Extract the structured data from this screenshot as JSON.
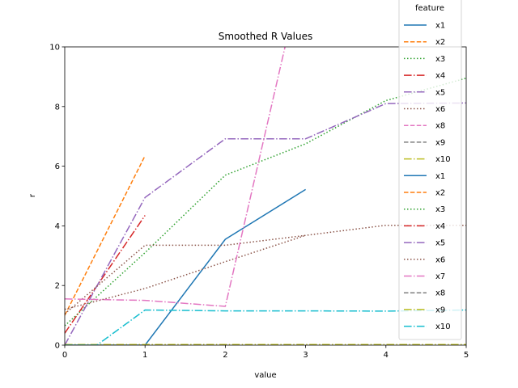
{
  "chart_data": {
    "type": "line",
    "title": "Smoothed R Values",
    "xlabel": "value",
    "ylabel": "r",
    "xlim": [
      0,
      5
    ],
    "ylim": [
      0,
      10
    ],
    "xticks": [
      "0",
      "1",
      "2",
      "3",
      "4",
      "5"
    ],
    "yticks": [
      "0",
      "2",
      "4",
      "6",
      "8",
      "10"
    ],
    "grid": false,
    "legend": {
      "title": "feature",
      "placement": "top-right, extending above the plot"
    },
    "series": [
      {
        "name": "x1",
        "color": "#1f77b4",
        "dash": "solid",
        "x": [
          0,
          1,
          2,
          3
        ],
        "y": [
          0.0,
          0.0,
          3.55,
          5.22
        ]
      },
      {
        "name": "x2",
        "color": "#ff7f0e",
        "dash": "dashed",
        "x": [
          0,
          1
        ],
        "y": [
          1.0,
          6.35
        ]
      },
      {
        "name": "x3",
        "color": "#2ca02c",
        "dash": "dotted",
        "x": [
          0,
          1,
          2,
          3,
          4,
          5
        ],
        "y": [
          0.65,
          3.1,
          5.7,
          6.75,
          8.2,
          8.95
        ]
      },
      {
        "name": "x4",
        "color": "#d62728",
        "dash": "dashdot",
        "x": [
          0,
          1
        ],
        "y": [
          0.4,
          4.35
        ]
      },
      {
        "name": "x5",
        "color": "#9467bd",
        "dash": "dashdot",
        "x": [
          0,
          1,
          2,
          3,
          4,
          5
        ],
        "y": [
          0.0,
          4.95,
          6.92,
          6.92,
          8.1,
          8.12
        ]
      },
      {
        "name": "x6",
        "color": "#8c564b",
        "dash": "densedot",
        "x": [
          0,
          1,
          2,
          3,
          4,
          5
        ],
        "y": [
          1.05,
          3.35,
          3.35,
          3.68,
          4.02,
          4.02
        ]
      },
      {
        "name": "x8",
        "color": "#e377c2",
        "dash": "dashed",
        "x": [],
        "y": []
      },
      {
        "name": "x9",
        "color": "#7f7f7f",
        "dash": "dashed",
        "x": [],
        "y": []
      },
      {
        "name": "x10",
        "color": "#bcbd22",
        "dash": "dashdot",
        "x": [],
        "y": []
      },
      {
        "name": "x1",
        "color": "#1f77b4",
        "dash": "solid",
        "x": [],
        "y": []
      },
      {
        "name": "x2",
        "color": "#ff7f0e",
        "dash": "dashed",
        "x": [],
        "y": []
      },
      {
        "name": "x3",
        "color": "#2ca02c",
        "dash": "dotted",
        "x": [],
        "y": []
      },
      {
        "name": "x4",
        "color": "#d62728",
        "dash": "dashdot",
        "x": [],
        "y": []
      },
      {
        "name": "x5",
        "color": "#9467bd",
        "dash": "dashdot",
        "x": [],
        "y": []
      },
      {
        "name": "x6",
        "color": "#8c564b",
        "dash": "densedot",
        "x": [
          0,
          1,
          2,
          3
        ],
        "y": [
          1.2,
          1.9,
          2.8,
          3.68
        ]
      },
      {
        "name": "x7",
        "color": "#e377c2",
        "dash": "dashdot",
        "x": [
          0,
          1,
          2,
          3
        ],
        "y": [
          1.55,
          1.5,
          1.3,
          13.0
        ]
      },
      {
        "name": "x8",
        "color": "#7f7f7f",
        "dash": "dashed",
        "x": [],
        "y": []
      },
      {
        "name": "x9",
        "color": "#bcbd22",
        "dash": "dashdot",
        "x": [
          0,
          1,
          2,
          3,
          4,
          5
        ],
        "y": [
          0.02,
          0.02,
          0.02,
          0.02,
          0.02,
          0.02
        ]
      },
      {
        "name": "x10",
        "color": "#17becf",
        "dash": "dashdot",
        "x": [
          0,
          0.4,
          1,
          2,
          3,
          4,
          5
        ],
        "y": [
          0,
          0,
          1.18,
          1.15,
          1.15,
          1.14,
          1.18
        ]
      }
    ]
  }
}
